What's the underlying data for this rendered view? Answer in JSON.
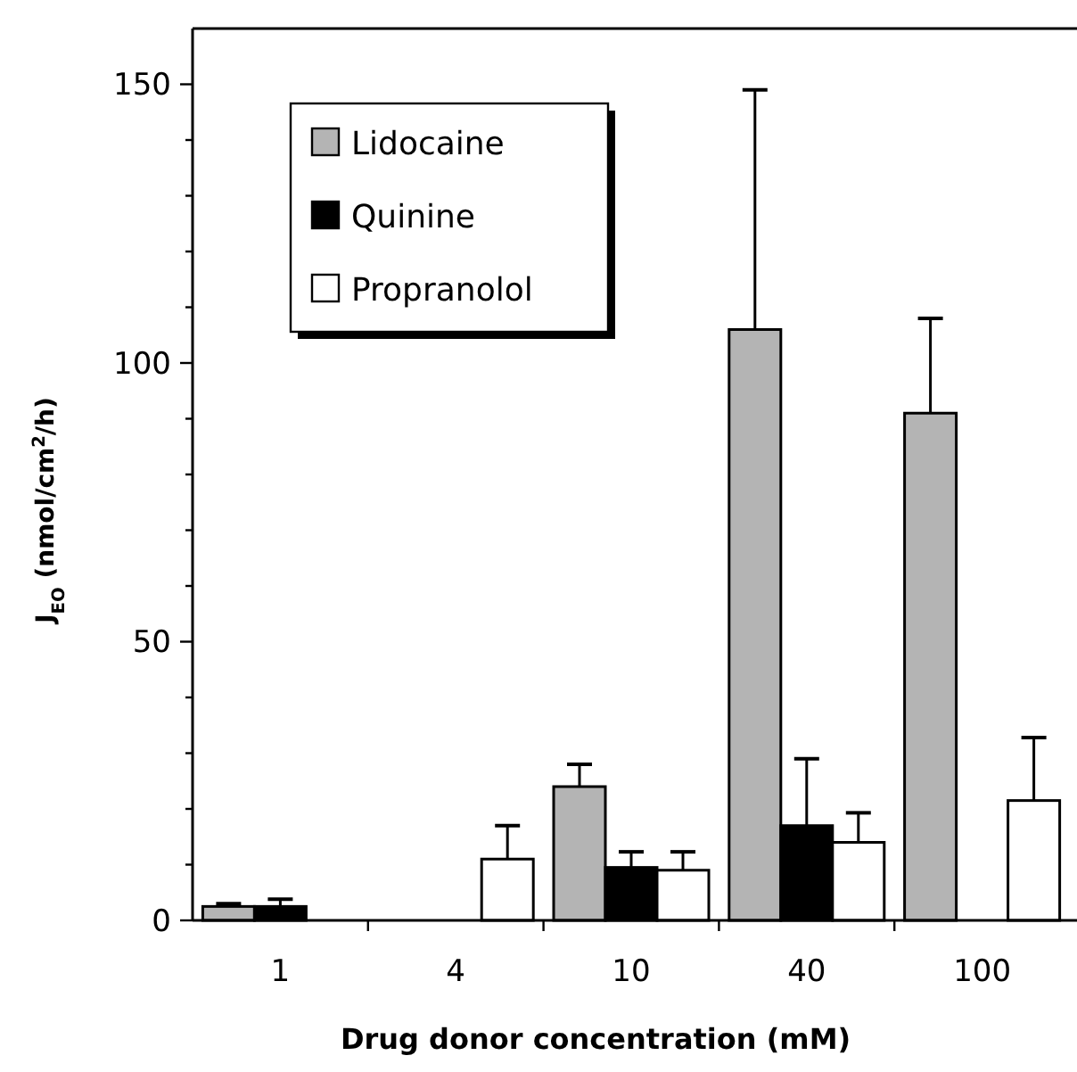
{
  "chart_data": {
    "type": "bar",
    "xlabel": "Drug donor concentration (mM)",
    "ylabel": "J$_{EO}$  (nmol/cm$^{2}$/h)",
    "categories": [
      "1",
      "4",
      "10",
      "40",
      "100"
    ],
    "series": [
      {
        "name": "Lidocaine",
        "color": "#b4b4b4",
        "values": [
          2.5,
          null,
          24,
          106,
          91
        ],
        "errors": [
          [
            2.5,
            3
          ],
          null,
          [
            24,
            28
          ],
          [
            106,
            149
          ],
          [
            91,
            108
          ]
        ]
      },
      {
        "name": "Quinine",
        "color": "#000000",
        "values": [
          2.5,
          null,
          9.5,
          17,
          null
        ],
        "errors": [
          [
            2.5,
            3.8
          ],
          null,
          [
            9.5,
            12.3
          ],
          [
            17,
            29
          ],
          null
        ]
      },
      {
        "name": "Propranolol",
        "color": "#ffffff",
        "values": [
          null,
          11,
          9,
          14,
          21.5
        ],
        "errors": [
          null,
          [
            11,
            17
          ],
          [
            9,
            12.3
          ],
          [
            14,
            19.3
          ],
          [
            21.5,
            32.8
          ]
        ]
      }
    ],
    "ylim": [
      0,
      160
    ],
    "yticks": [
      0,
      {
        "value": 10,
        "label": null
      },
      {
        "value": 20,
        "label": null
      },
      {
        "value": 30,
        "label": null
      },
      {
        "value": 40,
        "label": null
      },
      50,
      {
        "value": 60,
        "label": null
      },
      {
        "value": 70,
        "label": null
      },
      {
        "value": 80,
        "label": null
      },
      {
        "value": 90,
        "label": null
      },
      100,
      {
        "value": 110,
        "label": null
      },
      {
        "value": 120,
        "label": null
      },
      {
        "value": 130,
        "label": null
      },
      {
        "value": 140,
        "label": null
      },
      150
    ],
    "legend": "top left",
    "grid": false
  }
}
